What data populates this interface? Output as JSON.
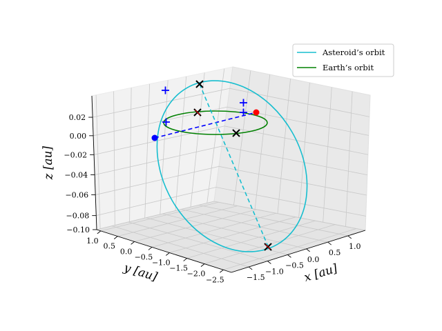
{
  "chart_data": {
    "type": "line",
    "projection": "3d",
    "title": "",
    "axes": {
      "x": {
        "label": "x [au]",
        "ticks": [
          "−1.5",
          "−1.0",
          "−0.5",
          "0.0",
          "0.5",
          "1.0"
        ],
        "range": [
          -1.85,
          1.25
        ]
      },
      "y": {
        "label": "y [au]",
        "ticks": [
          "1.0",
          "0.5",
          "0.0",
          "−0.5",
          "−1.0",
          "−1.5",
          "−2.0",
          "−2.5"
        ],
        "range": [
          1.2,
          -2.7
        ]
      },
      "z": {
        "label": "z [au]",
        "ticks": [
          "0.02",
          "0.00",
          "−0.02",
          "−0.04",
          "−0.06",
          "−0.08",
          "−0.10"
        ],
        "range": [
          0.035,
          -0.105
        ]
      }
    },
    "grid": true,
    "legend": {
      "placement": "top-right",
      "entries": [
        {
          "name": "Asteroid’s orbit",
          "color": "#17becf"
        },
        {
          "name": "Earth’s orbit",
          "color": "#008000"
        }
      ]
    },
    "series": [
      {
        "name": "Asteroid’s orbit",
        "kind": "ellipse",
        "color": "#17becf"
      },
      {
        "name": "Earth’s orbit",
        "kind": "ellipse",
        "color": "#008000"
      }
    ],
    "markers": {
      "red_point": "#ff0000",
      "blue_point": "#0000ff",
      "black_cross": "#000000",
      "blue_plus": "#0000ff",
      "dashed_blue": "#0000ff",
      "dashed_cyan": "#17becf"
    }
  }
}
